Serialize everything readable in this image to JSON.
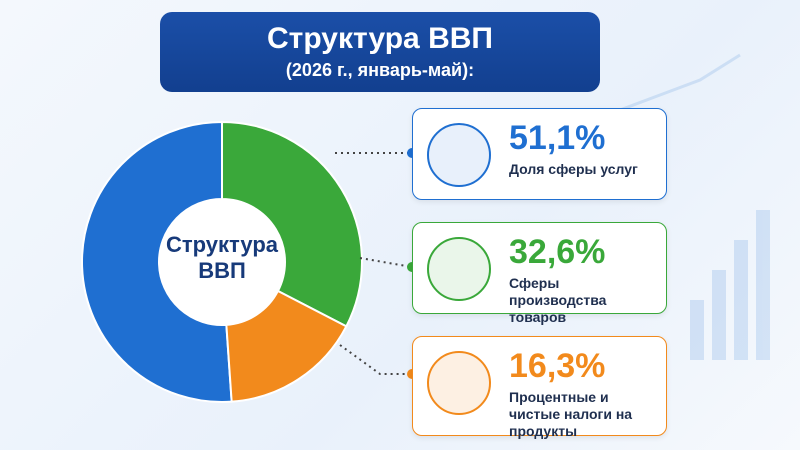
{
  "chart_data": {
    "type": "pie",
    "title": "Структура ВВП",
    "subtitle": "(2026 г., январь-май):",
    "center_label": "Структура ВВП",
    "categories": [
      "Доля сферы услуг",
      "Сферы производства товаров",
      "Процентные и чистые налоги на продукты"
    ],
    "values": [
      51.1,
      32.6,
      16.3
    ],
    "value_labels": [
      "51,1%",
      "32,6%",
      "16,3%"
    ],
    "colors": [
      "#1f6fd1",
      "#3aa83a",
      "#f28a1c"
    ]
  }
}
